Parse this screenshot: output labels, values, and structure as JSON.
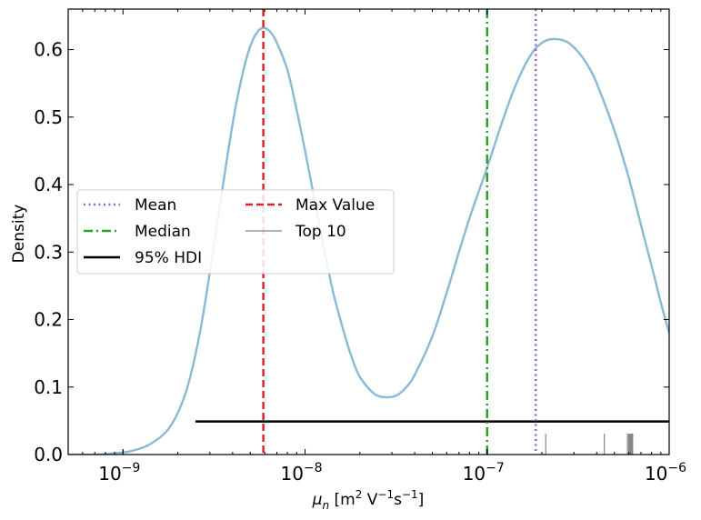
{
  "chart_data": {
    "type": "line",
    "x_scale": "log",
    "xlim": [
      5e-10,
      1e-06
    ],
    "ylim": [
      0,
      0.66
    ],
    "xlabel": {
      "main": "μ",
      "sub": "n",
      "unit_open": " [m",
      "sq": "2",
      "v": " V",
      "vexp": "−1",
      "s": "s",
      "sexp": "−1",
      "unit_close": "]"
    },
    "ylabel": "Density",
    "x_ticks": [
      {
        "value": 1e-09,
        "base": "10",
        "exp": "−9"
      },
      {
        "value": 1e-08,
        "base": "10",
        "exp": "−8"
      },
      {
        "value": 1e-07,
        "base": "10",
        "exp": "−7"
      },
      {
        "value": 1e-06,
        "base": "10",
        "exp": "−6"
      }
    ],
    "y_ticks": [
      {
        "value": 0.0,
        "label": "0.0"
      },
      {
        "value": 0.1,
        "label": "0.1"
      },
      {
        "value": 0.2,
        "label": "0.2"
      },
      {
        "value": 0.3,
        "label": "0.3"
      },
      {
        "value": 0.4,
        "label": "0.4"
      },
      {
        "value": 0.5,
        "label": "0.5"
      },
      {
        "value": 0.6,
        "label": "0.6"
      }
    ],
    "density_curve": {
      "color": "#8ab9d8",
      "x": [
        5e-10,
        7e-10,
        9e-10,
        1.1e-09,
        1.4e-09,
        1.8e-09,
        2.2e-09,
        2.6e-09,
        3e-09,
        3.5e-09,
        4e-09,
        4.5e-09,
        5e-09,
        5.5e-09,
        6e-09,
        6.5e-09,
        7e-09,
        8e-09,
        9e-09,
        1e-08,
        1.2e-08,
        1.4e-08,
        1.6e-08,
        1.8e-08,
        2e-08,
        2.4e-08,
        2.8e-08,
        3.2e-08,
        3.6e-08,
        4e-08,
        5e-08,
        6e-08,
        7e-08,
        8e-08,
        9e-08,
        1e-07,
        1.2e-07,
        1.4e-07,
        1.6e-07,
        1.8e-07,
        2e-07,
        2.2e-07,
        2.5e-07,
        2.8e-07,
        3.2e-07,
        3.6e-07,
        4e-07,
        5e-07,
        6e-07,
        7e-07,
        8e-07,
        9e-07,
        1e-06
      ],
      "y": [
        0.0,
        0.0,
        0.002,
        0.005,
        0.015,
        0.04,
        0.09,
        0.17,
        0.27,
        0.39,
        0.49,
        0.56,
        0.605,
        0.627,
        0.632,
        0.625,
        0.61,
        0.57,
        0.51,
        0.45,
        0.34,
        0.25,
        0.19,
        0.145,
        0.115,
        0.09,
        0.085,
        0.088,
        0.1,
        0.118,
        0.175,
        0.24,
        0.3,
        0.35,
        0.39,
        0.425,
        0.49,
        0.54,
        0.575,
        0.598,
        0.61,
        0.615,
        0.615,
        0.61,
        0.595,
        0.575,
        0.55,
        0.48,
        0.41,
        0.34,
        0.28,
        0.225,
        0.18
      ]
    },
    "vlines": [
      {
        "name": "Mean",
        "x": 1.85e-07,
        "color": "#9467bd",
        "dash": "dotted"
      },
      {
        "name": "Median",
        "x": 1e-07,
        "color": "#2ca02c",
        "dash": "dashdot"
      },
      {
        "name": "Max Value",
        "x": 5.9e-09,
        "color": "#d62728",
        "dash": "dashed"
      }
    ],
    "hdi": {
      "name": "95% HDI",
      "x_start": 2.5e-09,
      "x_end": 1e-06,
      "y": 0.049,
      "color": "#000000"
    },
    "top10": {
      "name": "Top 10",
      "color": "#888888",
      "height": 0.031,
      "x": [
        2.1e-07,
        4.4e-07,
        5.9e-07,
        6e-07,
        6.05e-07,
        6.1e-07,
        6.15e-07,
        6.2e-07,
        6.25e-07,
        6.3e-07
      ]
    },
    "legend": {
      "position": "center-left",
      "items": [
        {
          "label": "Mean",
          "color": "#9467bd",
          "style": "dotted"
        },
        {
          "label": "Max Value",
          "color": "#d62728",
          "style": "dashed"
        },
        {
          "label": "Median",
          "color": "#2ca02c",
          "style": "dashdot"
        },
        {
          "label": "Top 10",
          "color": "#888888",
          "style": "thin"
        },
        {
          "label": "95% HDI",
          "color": "#000000",
          "style": "solid"
        }
      ]
    }
  }
}
